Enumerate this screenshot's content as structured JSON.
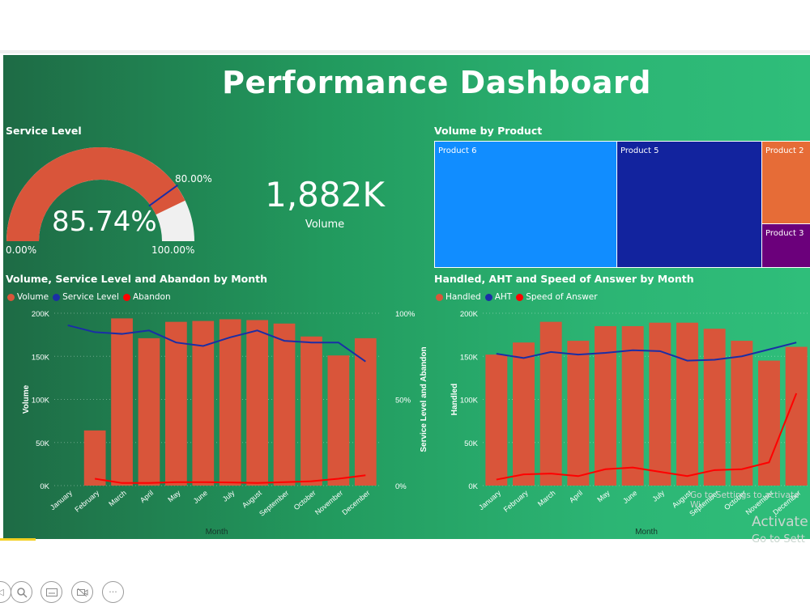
{
  "dashboard": {
    "title": "Performance Dashboard"
  },
  "colors": {
    "volume": "#d9553a",
    "service_level": "#1a2ea6",
    "abandon": "#ff0000",
    "gauge_fill": "#d9553a",
    "gauge_rest": "#f0f0f0"
  },
  "gauge": {
    "title": "Service Level",
    "value_label": "85.74%",
    "value": 85.74,
    "target": 80,
    "target_label": "80.00%",
    "min_label": "0.00%",
    "max_label": "100.00%"
  },
  "kpi": {
    "value": "1,882K",
    "label": "Volume"
  },
  "treemap": {
    "title": "Volume by Product",
    "items": [
      {
        "name": "Product 6",
        "color": "#118dff"
      },
      {
        "name": "Product 5",
        "color": "#12239e"
      },
      {
        "name": "Product 2",
        "color": "#e66c37"
      },
      {
        "name": "Product 3",
        "color": "#6b007b"
      }
    ]
  },
  "chart_data": [
    {
      "type": "bar",
      "title": "Volume, Service Level and Abandon by Month",
      "xlabel": "Month",
      "ylabel": "Volume",
      "y2label": "Service Level and Abandon",
      "categories": [
        "January",
        "February",
        "March",
        "April",
        "May",
        "June",
        "July",
        "August",
        "September",
        "October",
        "November",
        "December"
      ],
      "ylim": [
        0,
        200000
      ],
      "y2lim": [
        0,
        100
      ],
      "yticks": [
        "0K",
        "50K",
        "100K",
        "150K",
        "200K"
      ],
      "y2ticks": [
        "0%",
        "50%",
        "100%"
      ],
      "legend_position": "top-left",
      "series": [
        {
          "name": "Volume",
          "kind": "bar",
          "values": [
            0,
            64000,
            194000,
            171000,
            190000,
            191000,
            193000,
            192000,
            188000,
            173000,
            151000,
            171000
          ]
        },
        {
          "name": "Service Level",
          "kind": "line",
          "axis": "y2",
          "values": [
            93,
            89,
            88,
            90,
            83,
            81,
            86,
            90,
            84,
            83,
            83,
            72
          ]
        },
        {
          "name": "Abandon",
          "kind": "line",
          "axis": "y2",
          "values": [
            null,
            4,
            1.5,
            1.5,
            2,
            2,
            1.8,
            1.5,
            2,
            2.5,
            4,
            6
          ]
        }
      ]
    },
    {
      "type": "bar",
      "title": "Handled, AHT and Speed of Answer by Month",
      "xlabel": "Month",
      "ylabel": "Handled",
      "categories": [
        "January",
        "February",
        "March",
        "April",
        "May",
        "June",
        "July",
        "August",
        "September",
        "October",
        "November",
        "December"
      ],
      "ylim": [
        0,
        200000
      ],
      "yticks": [
        "0K",
        "50K",
        "100K",
        "150K",
        "200K"
      ],
      "legend_position": "top-left",
      "series": [
        {
          "name": "Handled",
          "kind": "bar",
          "values": [
            152000,
            166000,
            190000,
            168000,
            185000,
            185000,
            189000,
            189000,
            182000,
            168000,
            145000,
            161000
          ]
        },
        {
          "name": "AHT",
          "kind": "line",
          "values": [
            153000,
            148000,
            155000,
            152000,
            154000,
            157000,
            156000,
            145000,
            146000,
            150000,
            158000,
            166000
          ]
        },
        {
          "name": "Speed of Answer",
          "kind": "line",
          "values": [
            7000,
            13000,
            14000,
            11000,
            19000,
            21000,
            16000,
            11000,
            18000,
            19000,
            27000,
            107000
          ]
        }
      ]
    }
  ],
  "overlay": {
    "activate_line1": "Activate",
    "activate_line2": "Go to Sett",
    "activate_small": "Go to Settings to activate Wi"
  }
}
